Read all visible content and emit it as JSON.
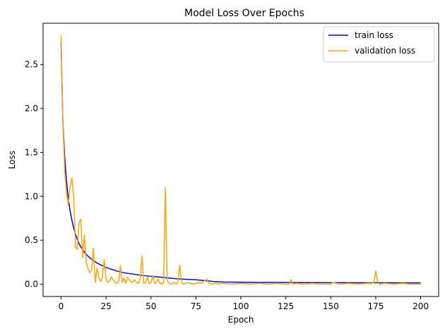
{
  "chart_data": {
    "type": "line",
    "title": "Model Loss Over Epochs",
    "xlabel": "Epoch",
    "ylabel": "Loss",
    "xlim": [
      -10,
      210
    ],
    "ylim": [
      -0.14,
      2.97
    ],
    "xticks": [
      0,
      25,
      50,
      75,
      100,
      125,
      150,
      175,
      200
    ],
    "yticks": [
      0.0,
      0.5,
      1.0,
      1.5,
      2.0,
      2.5
    ],
    "ytick_labels": [
      "0.0",
      "0.5",
      "1.0",
      "1.5",
      "2.0",
      "2.5"
    ],
    "grid": false,
    "legend": "top-right",
    "series": [
      {
        "name": "train loss",
        "color": "#0000ff",
        "x": [
          0,
          1,
          2,
          3,
          4,
          5,
          6,
          7,
          8,
          9,
          10,
          12,
          14,
          16,
          18,
          20,
          22,
          25,
          28,
          31,
          35,
          40,
          45,
          50,
          55,
          60,
          65,
          70,
          75,
          80,
          85,
          90,
          100,
          110,
          120,
          130,
          140,
          150,
          160,
          170,
          180,
          190,
          200
        ],
        "values": [
          2.75,
          1.85,
          1.45,
          1.18,
          0.98,
          0.84,
          0.73,
          0.64,
          0.57,
          0.51,
          0.46,
          0.39,
          0.34,
          0.3,
          0.27,
          0.24,
          0.22,
          0.19,
          0.17,
          0.15,
          0.13,
          0.115,
          0.1,
          0.09,
          0.08,
          0.07,
          0.06,
          0.055,
          0.05,
          0.04,
          0.03,
          0.025,
          0.022,
          0.02,
          0.02,
          0.018,
          0.018,
          0.017,
          0.017,
          0.016,
          0.016,
          0.015,
          0.015
        ]
      },
      {
        "name": "validation loss",
        "color": "#ffa500",
        "x": [
          0,
          1,
          2,
          3,
          4,
          5,
          6,
          7,
          8,
          9,
          10,
          11,
          12,
          13,
          14,
          15,
          16,
          17,
          18,
          19,
          20,
          21,
          22,
          23,
          24,
          25,
          26,
          27,
          28,
          29,
          30,
          31,
          32,
          33,
          34,
          35,
          36,
          37,
          38,
          39,
          40,
          41,
          42,
          43,
          44,
          45,
          46,
          47,
          48,
          49,
          50,
          51,
          52,
          53,
          54,
          55,
          56,
          57,
          58,
          59,
          60,
          61,
          62,
          63,
          64,
          65,
          66,
          67,
          68,
          69,
          70,
          72,
          74,
          76,
          78,
          80,
          81,
          82,
          84,
          86,
          88,
          90,
          95,
          100,
          105,
          110,
          115,
          120,
          125,
          127,
          128,
          129,
          131,
          135,
          140,
          145,
          150,
          151,
          155,
          160,
          165,
          170,
          173,
          174,
          175,
          176,
          177,
          180,
          185,
          190,
          195,
          200
        ],
        "values": [
          2.83,
          1.85,
          1.3,
          1.05,
          0.9,
          1.1,
          1.21,
          1.0,
          0.42,
          0.4,
          0.7,
          0.74,
          0.3,
          0.56,
          0.25,
          0.18,
          0.13,
          0.16,
          0.41,
          0.02,
          0.18,
          0.08,
          0.03,
          0.08,
          0.28,
          0.06,
          0.02,
          0.04,
          0.08,
          0.05,
          0.02,
          0.01,
          0.03,
          0.21,
          0.02,
          0.07,
          0.01,
          0.08,
          0.05,
          0.02,
          0.03,
          0.05,
          0.02,
          0.01,
          0.06,
          0.32,
          0.01,
          0.02,
          0.08,
          0.01,
          0.02,
          0.1,
          0.01,
          0.02,
          0.06,
          0.01,
          0.0,
          0.02,
          1.1,
          0.05,
          0.01,
          0.0,
          0.01,
          0.02,
          0.0,
          0.03,
          0.22,
          0.02,
          0.0,
          0.01,
          0.02,
          0.01,
          0.0,
          0.02,
          0.01,
          0.04,
          0.06,
          0.02,
          0.0,
          0.01,
          0.0,
          0.01,
          0.0,
          0.01,
          0.0,
          0.01,
          0.0,
          0.01,
          0.0,
          0.0,
          0.05,
          0.0,
          0.01,
          0.0,
          0.01,
          0.0,
          0.0,
          0.02,
          0.0,
          0.01,
          0.0,
          0.01,
          0.01,
          0.02,
          0.15,
          0.04,
          0.0,
          0.01,
          0.0,
          0.01,
          0.0,
          0.0
        ]
      }
    ]
  }
}
